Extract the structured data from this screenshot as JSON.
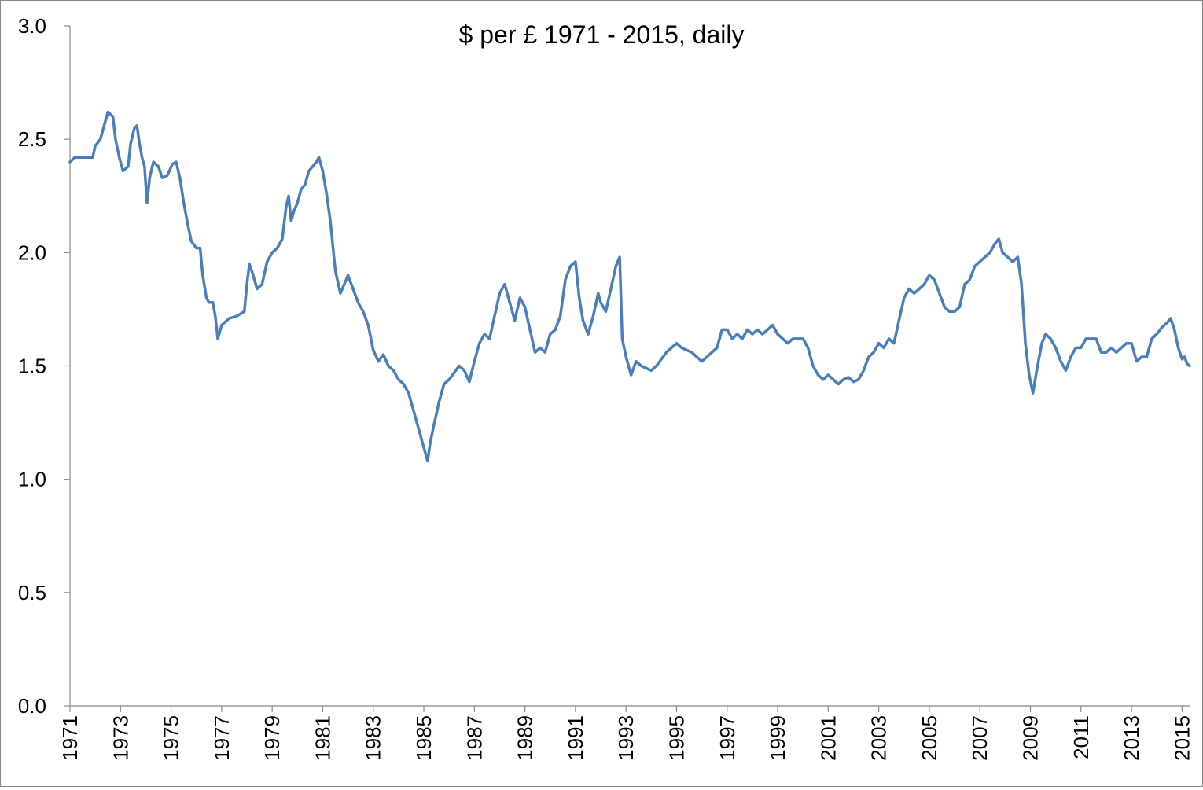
{
  "chart_data": {
    "type": "line",
    "title": "$ per £ 1971 - 2015, daily",
    "xlabel": "",
    "ylabel": "",
    "xlim": [
      1971,
      2015.3
    ],
    "ylim": [
      0,
      3
    ],
    "grid": false,
    "legend": "none",
    "y_ticks": [
      "0.0",
      "0.5",
      "1.0",
      "1.5",
      "2.0",
      "2.5",
      "3.0"
    ],
    "x_ticks": [
      "1971",
      "1973",
      "1975",
      "1977",
      "1979",
      "1981",
      "1983",
      "1985",
      "1987",
      "1989",
      "1991",
      "1993",
      "1995",
      "1997",
      "1999",
      "2001",
      "2003",
      "2005",
      "2007",
      "2009",
      "2011",
      "2013",
      "2015"
    ],
    "series": [
      {
        "color": "#4A7EBB",
        "points": [
          [
            1971.0,
            2.4
          ],
          [
            1971.2,
            2.42
          ],
          [
            1971.5,
            2.42
          ],
          [
            1971.9,
            2.42
          ],
          [
            1972.0,
            2.47
          ],
          [
            1972.2,
            2.5
          ],
          [
            1972.35,
            2.56
          ],
          [
            1972.5,
            2.62
          ],
          [
            1972.7,
            2.6
          ],
          [
            1972.8,
            2.5
          ],
          [
            1972.95,
            2.42
          ],
          [
            1973.1,
            2.36
          ],
          [
            1973.3,
            2.38
          ],
          [
            1973.4,
            2.48
          ],
          [
            1973.55,
            2.55
          ],
          [
            1973.65,
            2.56
          ],
          [
            1973.75,
            2.48
          ],
          [
            1973.85,
            2.42
          ],
          [
            1973.95,
            2.38
          ],
          [
            1974.05,
            2.22
          ],
          [
            1974.15,
            2.33
          ],
          [
            1974.3,
            2.4
          ],
          [
            1974.5,
            2.38
          ],
          [
            1974.65,
            2.33
          ],
          [
            1974.85,
            2.34
          ],
          [
            1975.05,
            2.39
          ],
          [
            1975.2,
            2.4
          ],
          [
            1975.35,
            2.33
          ],
          [
            1975.5,
            2.22
          ],
          [
            1975.65,
            2.13
          ],
          [
            1975.8,
            2.05
          ],
          [
            1976.0,
            2.02
          ],
          [
            1976.15,
            2.02
          ],
          [
            1976.25,
            1.9
          ],
          [
            1976.4,
            1.8
          ],
          [
            1976.5,
            1.78
          ],
          [
            1976.65,
            1.78
          ],
          [
            1976.75,
            1.72
          ],
          [
            1976.85,
            1.62
          ],
          [
            1977.0,
            1.68
          ],
          [
            1977.3,
            1.71
          ],
          [
            1977.6,
            1.72
          ],
          [
            1977.9,
            1.74
          ],
          [
            1978.0,
            1.86
          ],
          [
            1978.1,
            1.95
          ],
          [
            1978.25,
            1.9
          ],
          [
            1978.4,
            1.84
          ],
          [
            1978.6,
            1.86
          ],
          [
            1978.8,
            1.96
          ],
          [
            1979.0,
            2.0
          ],
          [
            1979.2,
            2.02
          ],
          [
            1979.4,
            2.06
          ],
          [
            1979.55,
            2.2
          ],
          [
            1979.65,
            2.25
          ],
          [
            1979.75,
            2.14
          ],
          [
            1979.85,
            2.18
          ],
          [
            1980.0,
            2.22
          ],
          [
            1980.15,
            2.28
          ],
          [
            1980.3,
            2.3
          ],
          [
            1980.45,
            2.36
          ],
          [
            1980.6,
            2.38
          ],
          [
            1980.75,
            2.4
          ],
          [
            1980.85,
            2.42
          ],
          [
            1981.0,
            2.36
          ],
          [
            1981.15,
            2.26
          ],
          [
            1981.3,
            2.14
          ],
          [
            1981.5,
            1.92
          ],
          [
            1981.7,
            1.82
          ],
          [
            1981.85,
            1.86
          ],
          [
            1982.0,
            1.9
          ],
          [
            1982.2,
            1.84
          ],
          [
            1982.4,
            1.78
          ],
          [
            1982.6,
            1.74
          ],
          [
            1982.8,
            1.68
          ],
          [
            1983.0,
            1.57
          ],
          [
            1983.2,
            1.52
          ],
          [
            1983.4,
            1.55
          ],
          [
            1983.6,
            1.5
          ],
          [
            1983.8,
            1.48
          ],
          [
            1984.0,
            1.44
          ],
          [
            1984.2,
            1.42
          ],
          [
            1984.4,
            1.38
          ],
          [
            1984.6,
            1.3
          ],
          [
            1984.8,
            1.22
          ],
          [
            1985.0,
            1.14
          ],
          [
            1985.15,
            1.08
          ],
          [
            1985.25,
            1.16
          ],
          [
            1985.4,
            1.24
          ],
          [
            1985.6,
            1.34
          ],
          [
            1985.8,
            1.42
          ],
          [
            1986.0,
            1.44
          ],
          [
            1986.2,
            1.47
          ],
          [
            1986.4,
            1.5
          ],
          [
            1986.6,
            1.48
          ],
          [
            1986.8,
            1.43
          ],
          [
            1987.0,
            1.52
          ],
          [
            1987.2,
            1.6
          ],
          [
            1987.4,
            1.64
          ],
          [
            1987.6,
            1.62
          ],
          [
            1987.8,
            1.72
          ],
          [
            1988.0,
            1.82
          ],
          [
            1988.2,
            1.86
          ],
          [
            1988.4,
            1.78
          ],
          [
            1988.6,
            1.7
          ],
          [
            1988.8,
            1.8
          ],
          [
            1989.0,
            1.76
          ],
          [
            1989.2,
            1.66
          ],
          [
            1989.4,
            1.56
          ],
          [
            1989.6,
            1.58
          ],
          [
            1989.8,
            1.56
          ],
          [
            1990.0,
            1.64
          ],
          [
            1990.2,
            1.66
          ],
          [
            1990.4,
            1.72
          ],
          [
            1990.6,
            1.88
          ],
          [
            1990.8,
            1.94
          ],
          [
            1991.0,
            1.96
          ],
          [
            1991.15,
            1.8
          ],
          [
            1991.3,
            1.7
          ],
          [
            1991.5,
            1.64
          ],
          [
            1991.7,
            1.72
          ],
          [
            1991.9,
            1.82
          ],
          [
            1992.0,
            1.78
          ],
          [
            1992.2,
            1.74
          ],
          [
            1992.4,
            1.84
          ],
          [
            1992.6,
            1.94
          ],
          [
            1992.75,
            1.98
          ],
          [
            1992.85,
            1.62
          ],
          [
            1993.0,
            1.54
          ],
          [
            1993.2,
            1.46
          ],
          [
            1993.4,
            1.52
          ],
          [
            1993.6,
            1.5
          ],
          [
            1993.8,
            1.49
          ],
          [
            1994.0,
            1.48
          ],
          [
            1994.2,
            1.5
          ],
          [
            1994.4,
            1.53
          ],
          [
            1994.6,
            1.56
          ],
          [
            1994.8,
            1.58
          ],
          [
            1995.0,
            1.6
          ],
          [
            1995.2,
            1.58
          ],
          [
            1995.4,
            1.57
          ],
          [
            1995.6,
            1.56
          ],
          [
            1995.8,
            1.54
          ],
          [
            1996.0,
            1.52
          ],
          [
            1996.2,
            1.54
          ],
          [
            1996.4,
            1.56
          ],
          [
            1996.6,
            1.58
          ],
          [
            1996.8,
            1.66
          ],
          [
            1997.0,
            1.66
          ],
          [
            1997.2,
            1.62
          ],
          [
            1997.4,
            1.64
          ],
          [
            1997.6,
            1.62
          ],
          [
            1997.8,
            1.66
          ],
          [
            1998.0,
            1.64
          ],
          [
            1998.2,
            1.66
          ],
          [
            1998.4,
            1.64
          ],
          [
            1998.6,
            1.66
          ],
          [
            1998.8,
            1.68
          ],
          [
            1999.0,
            1.64
          ],
          [
            1999.2,
            1.62
          ],
          [
            1999.4,
            1.6
          ],
          [
            1999.6,
            1.62
          ],
          [
            1999.8,
            1.62
          ],
          [
            2000.0,
            1.62
          ],
          [
            2000.2,
            1.58
          ],
          [
            2000.4,
            1.5
          ],
          [
            2000.6,
            1.46
          ],
          [
            2000.8,
            1.44
          ],
          [
            2001.0,
            1.46
          ],
          [
            2001.2,
            1.44
          ],
          [
            2001.4,
            1.42
          ],
          [
            2001.6,
            1.44
          ],
          [
            2001.8,
            1.45
          ],
          [
            2002.0,
            1.43
          ],
          [
            2002.2,
            1.44
          ],
          [
            2002.4,
            1.48
          ],
          [
            2002.6,
            1.54
          ],
          [
            2002.8,
            1.56
          ],
          [
            2003.0,
            1.6
          ],
          [
            2003.2,
            1.58
          ],
          [
            2003.4,
            1.62
          ],
          [
            2003.6,
            1.6
          ],
          [
            2003.8,
            1.7
          ],
          [
            2004.0,
            1.8
          ],
          [
            2004.2,
            1.84
          ],
          [
            2004.4,
            1.82
          ],
          [
            2004.6,
            1.84
          ],
          [
            2004.8,
            1.86
          ],
          [
            2005.0,
            1.9
          ],
          [
            2005.2,
            1.88
          ],
          [
            2005.4,
            1.82
          ],
          [
            2005.6,
            1.76
          ],
          [
            2005.8,
            1.74
          ],
          [
            2006.0,
            1.74
          ],
          [
            2006.2,
            1.76
          ],
          [
            2006.4,
            1.86
          ],
          [
            2006.6,
            1.88
          ],
          [
            2006.8,
            1.94
          ],
          [
            2007.0,
            1.96
          ],
          [
            2007.2,
            1.98
          ],
          [
            2007.4,
            2.0
          ],
          [
            2007.6,
            2.04
          ],
          [
            2007.75,
            2.06
          ],
          [
            2007.9,
            2.0
          ],
          [
            2008.1,
            1.98
          ],
          [
            2008.3,
            1.96
          ],
          [
            2008.5,
            1.98
          ],
          [
            2008.65,
            1.86
          ],
          [
            2008.8,
            1.6
          ],
          [
            2008.95,
            1.46
          ],
          [
            2009.1,
            1.38
          ],
          [
            2009.25,
            1.48
          ],
          [
            2009.45,
            1.6
          ],
          [
            2009.6,
            1.64
          ],
          [
            2009.8,
            1.62
          ],
          [
            2010.0,
            1.58
          ],
          [
            2010.2,
            1.52
          ],
          [
            2010.4,
            1.48
          ],
          [
            2010.6,
            1.54
          ],
          [
            2010.8,
            1.58
          ],
          [
            2011.0,
            1.58
          ],
          [
            2011.2,
            1.62
          ],
          [
            2011.4,
            1.62
          ],
          [
            2011.6,
            1.62
          ],
          [
            2011.8,
            1.56
          ],
          [
            2012.0,
            1.56
          ],
          [
            2012.2,
            1.58
          ],
          [
            2012.4,
            1.56
          ],
          [
            2012.6,
            1.58
          ],
          [
            2012.8,
            1.6
          ],
          [
            2013.0,
            1.6
          ],
          [
            2013.2,
            1.52
          ],
          [
            2013.4,
            1.54
          ],
          [
            2013.6,
            1.54
          ],
          [
            2013.8,
            1.62
          ],
          [
            2014.0,
            1.64
          ],
          [
            2014.2,
            1.67
          ],
          [
            2014.4,
            1.69
          ],
          [
            2014.55,
            1.71
          ],
          [
            2014.7,
            1.66
          ],
          [
            2014.85,
            1.58
          ],
          [
            2015.0,
            1.53
          ],
          [
            2015.1,
            1.54
          ],
          [
            2015.2,
            1.51
          ],
          [
            2015.3,
            1.5
          ]
        ]
      }
    ]
  }
}
